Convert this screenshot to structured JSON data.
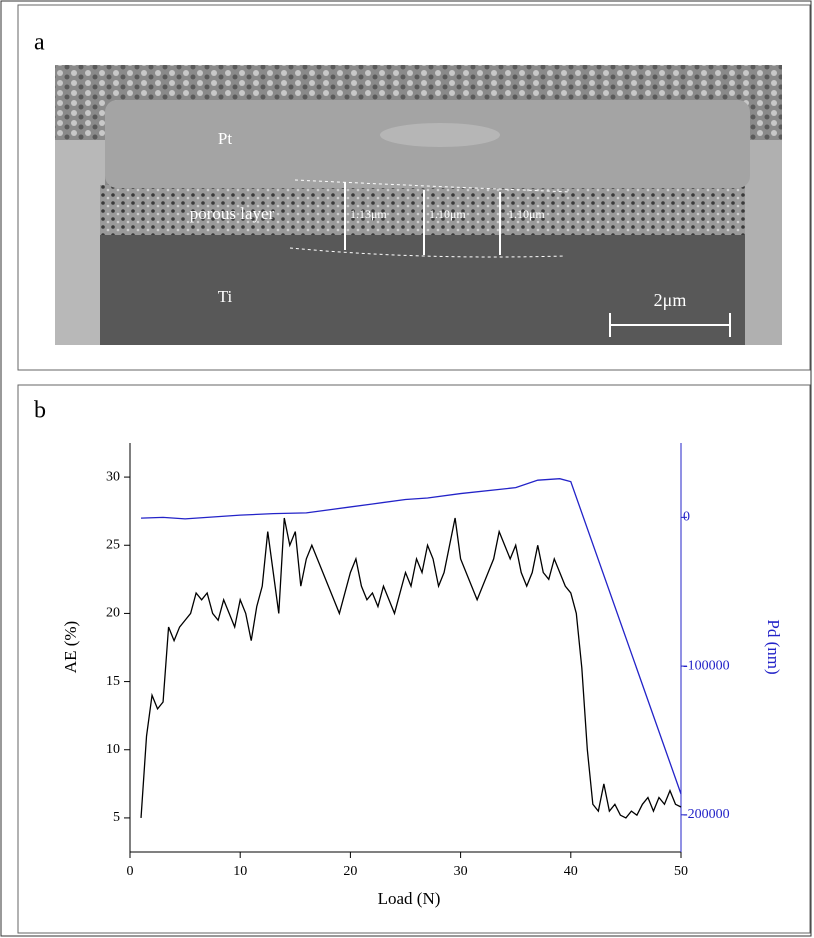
{
  "panel_a": {
    "label": "a",
    "layers": [
      "Pt",
      "porous layer",
      "Ti"
    ],
    "thicknesses": [
      "1.13μm",
      "1.10μm",
      "1.10μm"
    ],
    "scale_bar": "2μm"
  },
  "panel_b_label": "b",
  "chart_data": {
    "type": "line",
    "xlabel": "Load (N)",
    "ylabel": "AE (%)",
    "y2label": "Pd (nm)",
    "xlim": [
      0,
      50
    ],
    "xticks": [
      0,
      10,
      20,
      30,
      40,
      50
    ],
    "ylim": [
      2.5,
      32.5
    ],
    "yticks": [
      5,
      10,
      15,
      20,
      25,
      30
    ],
    "y2lim": [
      -225000,
      50000
    ],
    "y2ticks": [
      -200000,
      -100000,
      0
    ],
    "series": [
      {
        "color": "#000000",
        "axis": "y",
        "x": [
          1,
          1.5,
          2,
          2.5,
          3,
          3.5,
          4,
          4.5,
          5,
          5.5,
          6,
          6.5,
          7,
          7.5,
          8,
          8.5,
          9,
          9.5,
          10,
          10.5,
          11,
          11.5,
          12,
          12.5,
          13,
          13.5,
          14,
          14.5,
          15,
          15.5,
          16,
          16.5,
          17,
          17.5,
          18,
          18.5,
          19,
          19.5,
          20,
          20.5,
          21,
          21.5,
          22,
          22.5,
          23,
          23.5,
          24,
          24.5,
          25,
          25.5,
          26,
          26.5,
          27,
          27.5,
          28,
          28.5,
          29,
          29.5,
          30,
          30.5,
          31,
          31.5,
          32,
          32.5,
          33,
          33.5,
          34,
          34.5,
          35,
          35.5,
          36,
          36.5,
          37,
          37.5,
          38,
          38.5,
          39,
          39.5,
          40,
          40.5,
          41,
          41.5,
          42,
          42.5,
          43,
          43.5,
          44,
          44.5,
          45,
          45.5,
          46,
          46.5,
          47,
          47.5,
          48,
          48.5,
          49,
          49.5,
          50
        ],
        "values": [
          5,
          11,
          14,
          13,
          13.5,
          19,
          18,
          19,
          19.5,
          20,
          21.5,
          21,
          21.5,
          20,
          19.5,
          21,
          20,
          19,
          21,
          20,
          18,
          20.5,
          22,
          26,
          23,
          20,
          27,
          25,
          26,
          22,
          24,
          25,
          24,
          23,
          22,
          21,
          20,
          21.5,
          23,
          24,
          22,
          21,
          21.5,
          20.5,
          22,
          21,
          20,
          21.5,
          23,
          22,
          24,
          23,
          25,
          24,
          22,
          23,
          25,
          27,
          24,
          23,
          22,
          21,
          22,
          23,
          24,
          26,
          25,
          24,
          25,
          23,
          22,
          23,
          25,
          23,
          22.5,
          24,
          23,
          22,
          21.5,
          20,
          16,
          10,
          6,
          5.5,
          7.5,
          5.5,
          6,
          5.2,
          5,
          5.5,
          5.2,
          6,
          6.5,
          5.5,
          6.5,
          6,
          7,
          6,
          5.8
        ]
      },
      {
        "color": "#2323c8",
        "axis": "y2",
        "x": [
          1,
          3,
          5,
          7,
          10,
          13,
          16,
          20,
          22,
          25,
          27,
          30,
          35,
          37,
          39,
          40,
          45,
          50
        ],
        "values": [
          -500,
          0,
          -1000,
          0,
          1500,
          2500,
          3000,
          7000,
          9000,
          12000,
          13000,
          16000,
          20000,
          25000,
          26000,
          24000,
          -81000,
          -186000
        ]
      }
    ]
  }
}
